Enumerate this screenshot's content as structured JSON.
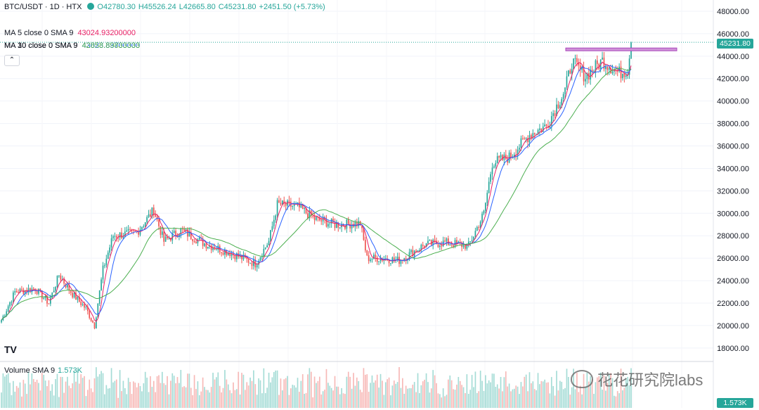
{
  "header": {
    "symbol": "BTC/USDT · 1D · HTX",
    "open": "O42780.30",
    "high": "H45526.24",
    "low": "L42665.80",
    "close": "C45231.80",
    "change": "+2451.50 (+5.73%)"
  },
  "indicators": [
    {
      "label": "MA 5 close 0 SMA 9",
      "value": "43024.93200000",
      "color": "#e91e63"
    },
    {
      "label": "MA 10 close 0 SMA 9",
      "value": "43023.83700000",
      "color": "#2962ff"
    },
    {
      "label": "MA 30 close 0 SMA 9",
      "value": "42858.89833333",
      "color": "#4caf50"
    }
  ],
  "collapse_icon": "chevron-up-icon",
  "volume_legend": {
    "label": "Volume SMA 9",
    "value": "1.573K"
  },
  "price_scale_tags": {
    "last_price": "45231.80",
    "volume": "1.573K"
  },
  "logo_text": "TV",
  "watermark": "花花研究院labs",
  "colors": {
    "up": "#26a69a",
    "down": "#ef5350",
    "ma5": "#e91e63",
    "ma10": "#2962ff",
    "ma30": "#4caf50",
    "resistance": "#ce93d8"
  },
  "chart_data": {
    "type": "candlestick",
    "title": "BTC/USDT · 1D · HTX",
    "y_ticks": [
      18000,
      20000,
      22000,
      24000,
      26000,
      28000,
      30000,
      32000,
      34000,
      36000,
      38000,
      40000,
      42000,
      44000,
      46000,
      48000
    ],
    "ylim": [
      16800,
      49000
    ],
    "grid": true,
    "last_price": 45231.8,
    "resistance_level": 44600,
    "close_path_keypoints": [
      [
        0,
        20500
      ],
      [
        8,
        23000
      ],
      [
        20,
        23300
      ],
      [
        28,
        22000
      ],
      [
        34,
        24500
      ],
      [
        42,
        22800
      ],
      [
        50,
        21500
      ],
      [
        55,
        20000
      ],
      [
        60,
        25000
      ],
      [
        66,
        28000
      ],
      [
        80,
        28300
      ],
      [
        90,
        30300
      ],
      [
        96,
        27500
      ],
      [
        106,
        28500
      ],
      [
        120,
        27300
      ],
      [
        135,
        26500
      ],
      [
        150,
        25500
      ],
      [
        158,
        27500
      ],
      [
        163,
        30800
      ],
      [
        175,
        30600
      ],
      [
        185,
        29500
      ],
      [
        197,
        29000
      ],
      [
        212,
        29100
      ],
      [
        216,
        26000
      ],
      [
        225,
        26000
      ],
      [
        235,
        25800
      ],
      [
        250,
        27200
      ],
      [
        262,
        27400
      ],
      [
        276,
        27100
      ],
      [
        285,
        30000
      ],
      [
        290,
        34500
      ],
      [
        300,
        35000
      ],
      [
        312,
        37000
      ],
      [
        322,
        37800
      ],
      [
        333,
        41000
      ],
      [
        337,
        43500
      ],
      [
        345,
        42200
      ],
      [
        355,
        43600
      ],
      [
        365,
        42500
      ],
      [
        370,
        42800
      ],
      [
        372,
        45231.8
      ]
    ],
    "candle_count": 373,
    "volume_sma": 1.573
  }
}
